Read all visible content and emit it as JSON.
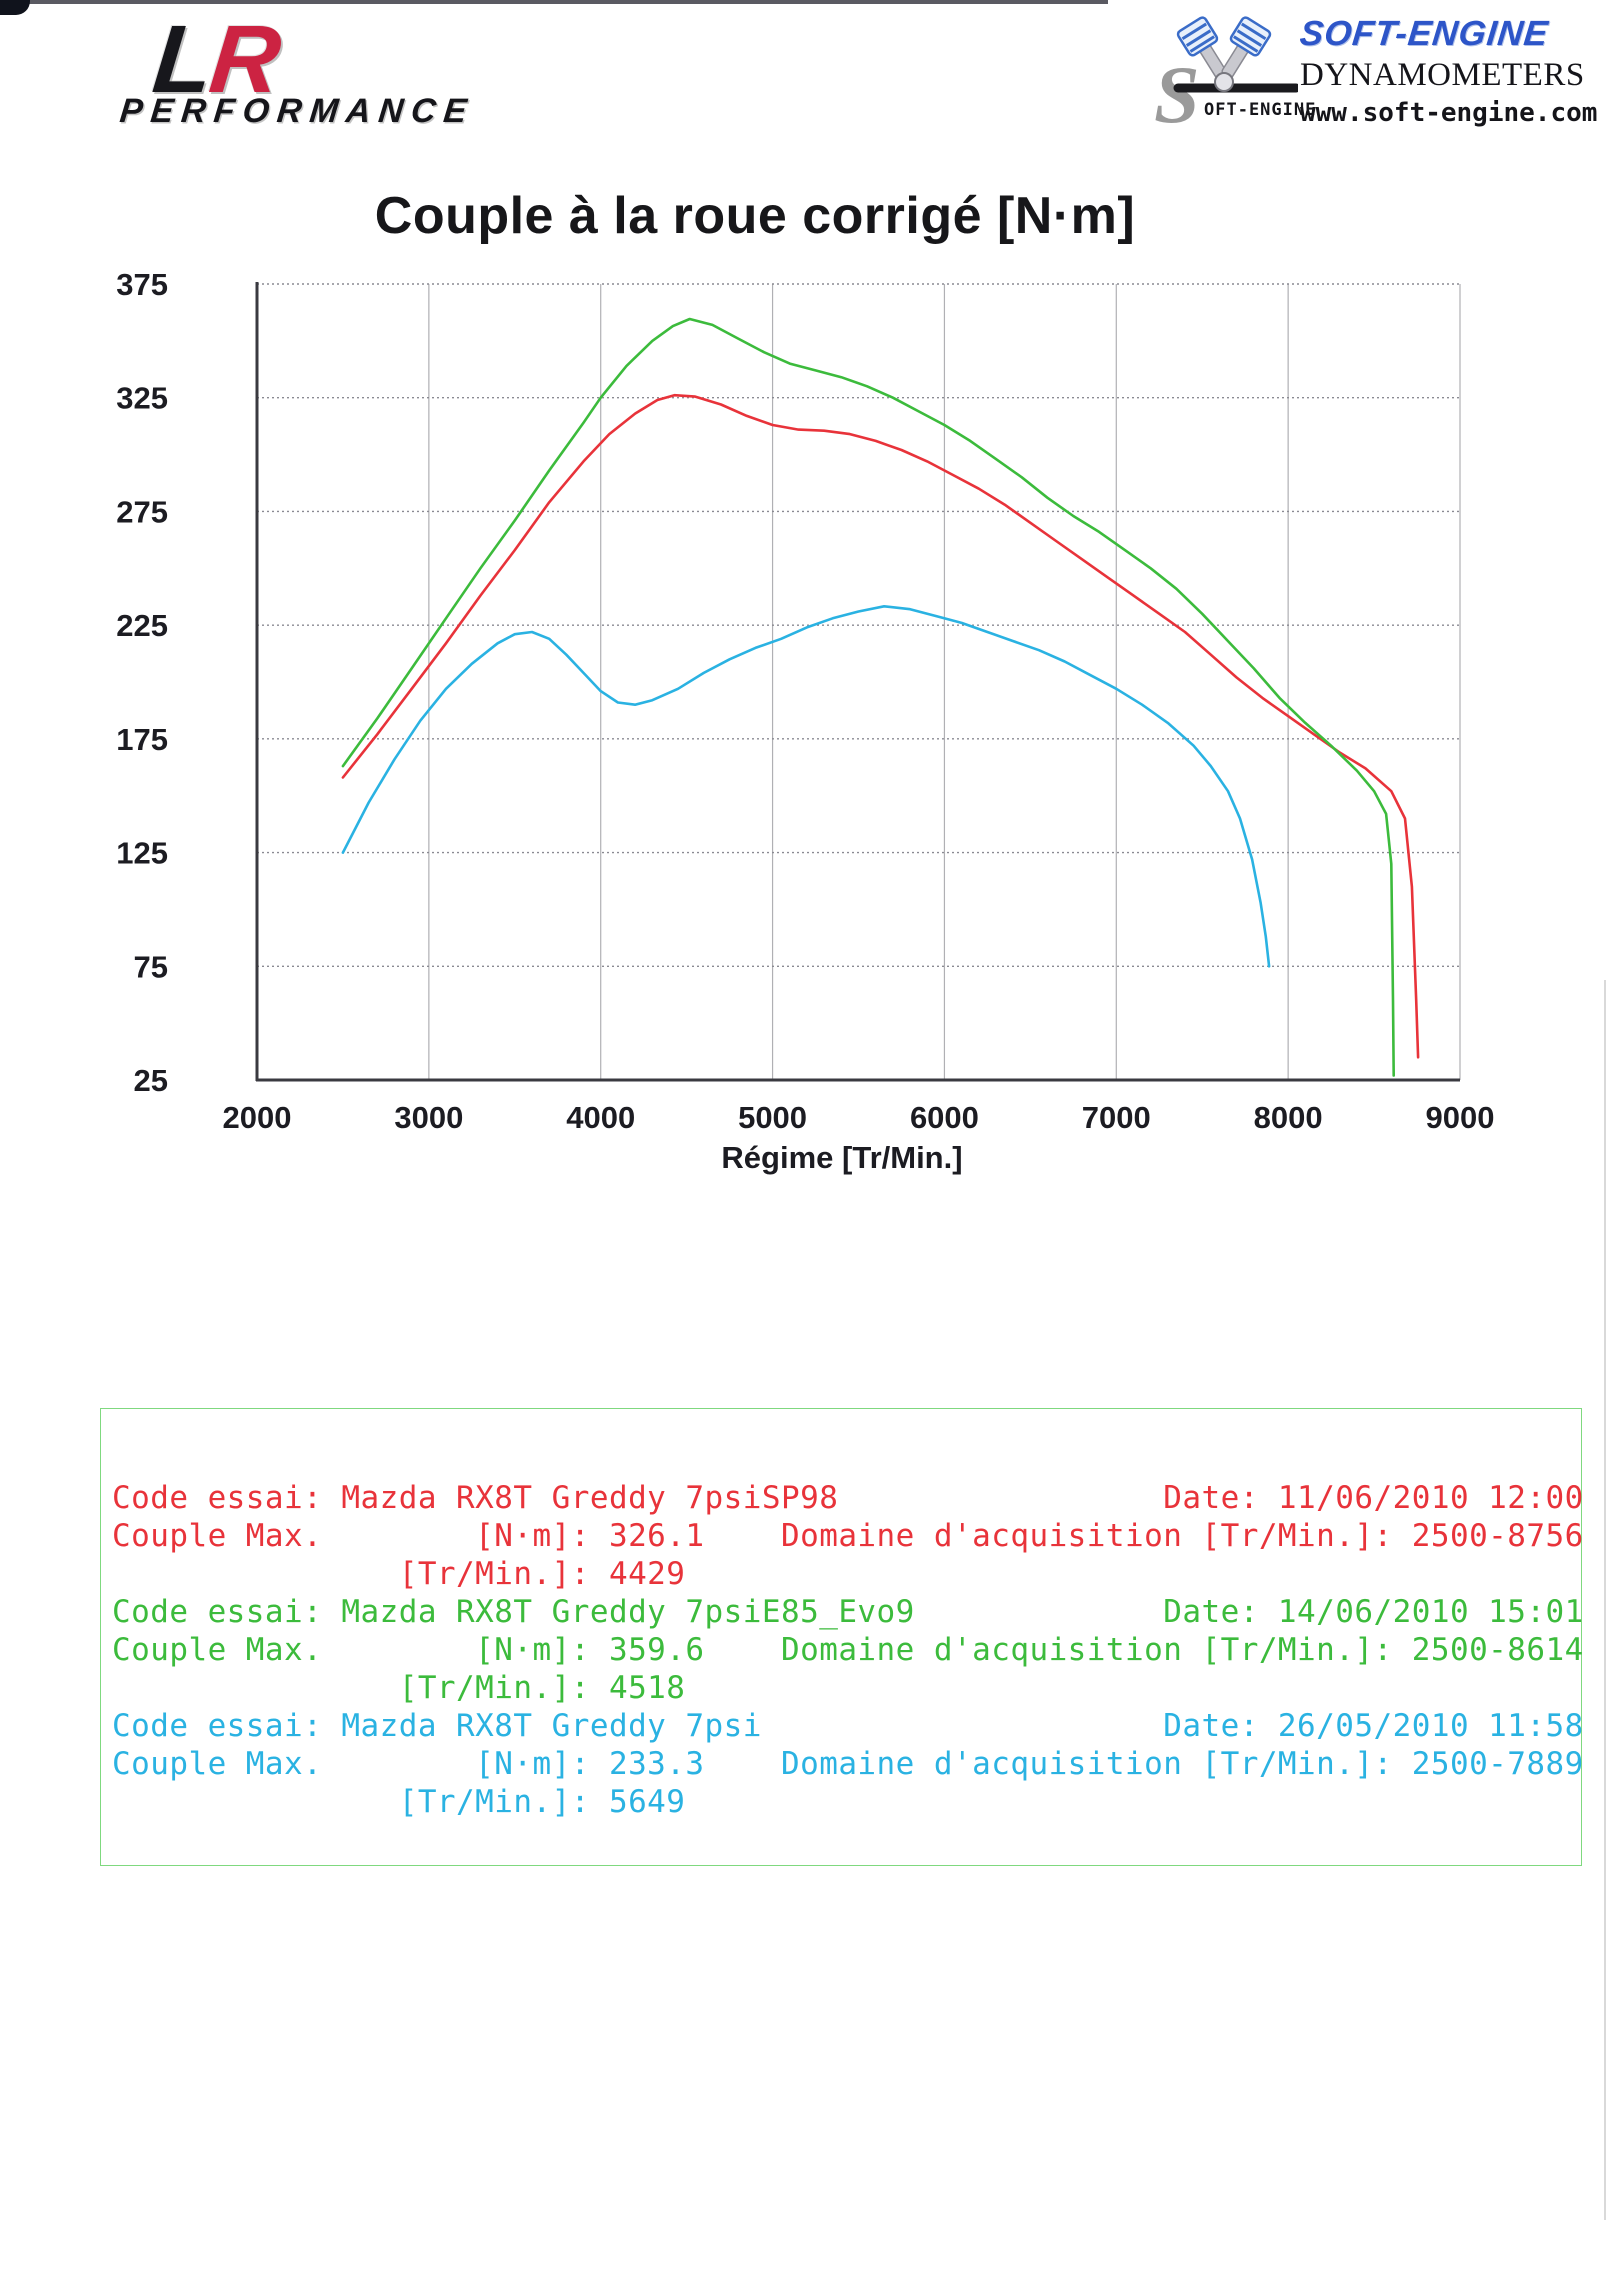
{
  "header": {
    "lr_logo": {
      "letter_l": "L",
      "letter_r": "R",
      "subtitle": "PERFORMANCE"
    },
    "soft_engine": {
      "brand": "SOFT-ENGINE",
      "line2": "DYNAMOMETERS",
      "website": "www.soft-engine.com",
      "s_text": "OFT-ENGINE"
    }
  },
  "chart_data": {
    "type": "line",
    "title": "Couple à la roue corrigé [N·m]",
    "xlabel": "Régime [Tr/Min.]",
    "ylabel": "",
    "xlim": [
      2000,
      9000
    ],
    "ylim": [
      25,
      375
    ],
    "xticks": [
      2000,
      3000,
      4000,
      5000,
      6000,
      7000,
      8000,
      9000
    ],
    "yticks": [
      25,
      75,
      125,
      175,
      225,
      275,
      325,
      375
    ],
    "grid": true,
    "legend_position": "none",
    "series": [
      {
        "name": "Mazda RX8T Greddy 7psiSP98",
        "slug": "sp98",
        "color": "#e8333a",
        "max_nm": 326.1,
        "max_rpm": 4429,
        "points": [
          [
            2500,
            158
          ],
          [
            2700,
            177
          ],
          [
            2900,
            197
          ],
          [
            3100,
            217
          ],
          [
            3300,
            238
          ],
          [
            3500,
            258
          ],
          [
            3700,
            279
          ],
          [
            3900,
            297
          ],
          [
            4050,
            309
          ],
          [
            4200,
            318
          ],
          [
            4330,
            324
          ],
          [
            4429,
            326.1
          ],
          [
            4550,
            325.5
          ],
          [
            4700,
            322
          ],
          [
            4850,
            317
          ],
          [
            5000,
            313
          ],
          [
            5150,
            311
          ],
          [
            5300,
            310.5
          ],
          [
            5450,
            309
          ],
          [
            5600,
            306
          ],
          [
            5750,
            302
          ],
          [
            5900,
            297
          ],
          [
            6050,
            291
          ],
          [
            6200,
            285
          ],
          [
            6350,
            278
          ],
          [
            6500,
            270
          ],
          [
            6650,
            262
          ],
          [
            6800,
            254
          ],
          [
            6950,
            246
          ],
          [
            7100,
            238
          ],
          [
            7250,
            230
          ],
          [
            7400,
            222
          ],
          [
            7550,
            212
          ],
          [
            7700,
            202
          ],
          [
            7850,
            193
          ],
          [
            8000,
            185
          ],
          [
            8150,
            177
          ],
          [
            8300,
            169
          ],
          [
            8450,
            162
          ],
          [
            8600,
            152
          ],
          [
            8680,
            140
          ],
          [
            8720,
            110
          ],
          [
            8745,
            60
          ],
          [
            8756,
            35
          ]
        ]
      },
      {
        "name": "Mazda RX8T Greddy 7psiE85_Evo9",
        "slug": "e85-evo9",
        "color": "#3cbb3c",
        "max_nm": 359.6,
        "max_rpm": 4518,
        "points": [
          [
            2500,
            163
          ],
          [
            2700,
            184
          ],
          [
            2900,
            206
          ],
          [
            3100,
            228
          ],
          [
            3300,
            250
          ],
          [
            3500,
            271
          ],
          [
            3700,
            293
          ],
          [
            3900,
            314
          ],
          [
            4000,
            325
          ],
          [
            4150,
            339
          ],
          [
            4300,
            350
          ],
          [
            4420,
            356.5
          ],
          [
            4518,
            359.6
          ],
          [
            4650,
            357
          ],
          [
            4800,
            351
          ],
          [
            4950,
            345
          ],
          [
            5100,
            340
          ],
          [
            5250,
            337
          ],
          [
            5400,
            334
          ],
          [
            5550,
            330
          ],
          [
            5700,
            325
          ],
          [
            5850,
            319
          ],
          [
            6000,
            313
          ],
          [
            6150,
            306
          ],
          [
            6300,
            298
          ],
          [
            6450,
            290
          ],
          [
            6600,
            281
          ],
          [
            6750,
            273
          ],
          [
            6900,
            266
          ],
          [
            7050,
            258
          ],
          [
            7200,
            250
          ],
          [
            7350,
            241
          ],
          [
            7500,
            230
          ],
          [
            7650,
            218
          ],
          [
            7800,
            206
          ],
          [
            7950,
            193
          ],
          [
            8100,
            182
          ],
          [
            8250,
            172
          ],
          [
            8400,
            161
          ],
          [
            8500,
            152
          ],
          [
            8570,
            142
          ],
          [
            8600,
            120
          ],
          [
            8610,
            60
          ],
          [
            8614,
            27
          ]
        ]
      },
      {
        "name": "Mazda RX8T Greddy 7psi",
        "slug": "7psi",
        "color": "#2ab2e2",
        "max_nm": 233.3,
        "max_rpm": 5649,
        "points": [
          [
            2500,
            125
          ],
          [
            2650,
            147
          ],
          [
            2800,
            166
          ],
          [
            2950,
            183
          ],
          [
            3100,
            197
          ],
          [
            3250,
            208
          ],
          [
            3400,
            217
          ],
          [
            3500,
            221
          ],
          [
            3600,
            222
          ],
          [
            3700,
            219
          ],
          [
            3800,
            212
          ],
          [
            3900,
            204
          ],
          [
            4000,
            196
          ],
          [
            4100,
            191
          ],
          [
            4200,
            190
          ],
          [
            4300,
            192
          ],
          [
            4450,
            197
          ],
          [
            4600,
            204
          ],
          [
            4750,
            210
          ],
          [
            4900,
            215
          ],
          [
            5050,
            219
          ],
          [
            5200,
            224
          ],
          [
            5350,
            228
          ],
          [
            5500,
            231
          ],
          [
            5649,
            233.3
          ],
          [
            5800,
            232
          ],
          [
            5950,
            229
          ],
          [
            6100,
            226
          ],
          [
            6250,
            222
          ],
          [
            6400,
            218
          ],
          [
            6550,
            214
          ],
          [
            6700,
            209
          ],
          [
            6850,
            203
          ],
          [
            7000,
            197
          ],
          [
            7150,
            190
          ],
          [
            7300,
            182
          ],
          [
            7450,
            172
          ],
          [
            7550,
            163
          ],
          [
            7650,
            152
          ],
          [
            7720,
            140
          ],
          [
            7790,
            122
          ],
          [
            7840,
            103
          ],
          [
            7870,
            88
          ],
          [
            7889,
            75
          ]
        ]
      }
    ]
  },
  "results_table": {
    "border_color": "#7fd97f",
    "labels": {
      "code_essai": "Code essai:",
      "date": "Date:",
      "couple_max": "Couple Max.",
      "nm_unit": "[N·m]:",
      "trmin_unit": "[Tr/Min.]:",
      "domaine": "Domaine d'acquisition"
    },
    "tests": [
      {
        "code": "Mazda RX8T Greddy 7psiSP98",
        "date": "11/06/2010 12:00",
        "couple_max_nm": "326.1",
        "couple_max_rpm": "4429",
        "domaine": "2500-8756",
        "color": "#e8333a"
      },
      {
        "code": "Mazda RX8T Greddy 7psiE85_Evo9",
        "date": "14/06/2010 15:01",
        "couple_max_nm": "359.6",
        "couple_max_rpm": "4518",
        "domaine": "2500-8614",
        "color": "#3cbb3c"
      },
      {
        "code": "Mazda RX8T Greddy 7psi",
        "date": "26/05/2010 11:58",
        "couple_max_nm": "233.3",
        "couple_max_rpm": "5649",
        "domaine": "2500-7889",
        "color": "#2ab2e2"
      }
    ]
  }
}
